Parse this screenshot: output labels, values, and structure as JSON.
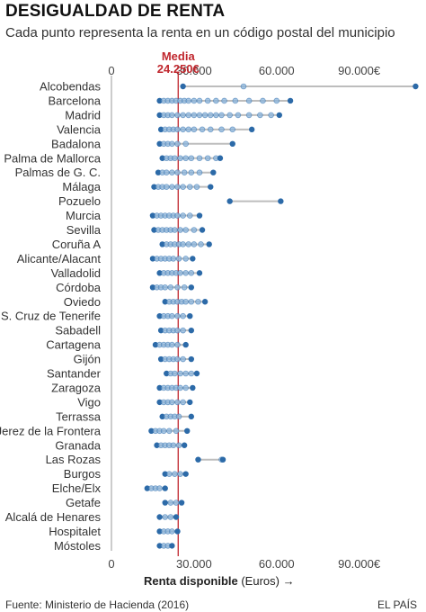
{
  "header": {
    "title": "DESIGUALDAD DE RENTA",
    "subtitle": "Cada punto representa la renta en un código postal del municipio"
  },
  "footer": {
    "source": "Fuente: Ministerio de Hacienda (2016)",
    "brand": "EL PAÍS"
  },
  "colors": {
    "dot": "#2c6aa8",
    "dot_light": "#8ab4dc",
    "range_line": "#bdbdbd",
    "median_line": "#c0262d",
    "axis": "#999999"
  },
  "chart_data": {
    "type": "scatter",
    "title": "DESIGUALDAD DE RENTA",
    "subtitle": "Cada punto representa la renta en un código postal del municipio",
    "xlabel": "Renta disponible",
    "xlabel_unit": "(Euros) →",
    "xlim": [
      0,
      112000
    ],
    "xticks": [
      0,
      30000,
      60000,
      90000
    ],
    "xtick_labels": [
      "0",
      "30.000",
      "60.000",
      "90.000€"
    ],
    "grid": false,
    "reference_line": {
      "label": "Media",
      "value_label": "24.250€",
      "value": 24250
    },
    "categories": [
      "Alcobendas",
      "Barcelona",
      "Madrid",
      "Valencia",
      "Badalona",
      "Palma de Mallorca",
      "Palmas de G. C.",
      "Málaga",
      "Pozuelo",
      "Murcia",
      "Sevilla",
      "Coruña A",
      "Alicante/Alacant",
      "Valladolid",
      "Córdoba",
      "Oviedo",
      "S. Cruz de Tenerife",
      "Sabadell",
      "Cartagena",
      "Gijón",
      "Santander",
      "Zaragoza",
      "Vigo",
      "Terrassa",
      "Jerez de la Frontera",
      "Granada",
      "Las Rozas",
      "Burgos",
      "Elche/Elx",
      "Getafe",
      "Alcalá de Henares",
      "Hospitalet",
      "Móstoles"
    ],
    "series": [
      {
        "category": "Alcobendas",
        "values": [
          26000,
          48000,
          110500
        ]
      },
      {
        "category": "Barcelona",
        "values": [
          17500,
          19000,
          20500,
          22000,
          23500,
          25000,
          26500,
          28000,
          30000,
          32000,
          35000,
          38000,
          41000,
          45000,
          50000,
          55000,
          60000,
          65000
        ]
      },
      {
        "category": "Madrid",
        "values": [
          17500,
          19000,
          20500,
          22000,
          24000,
          26000,
          28000,
          30000,
          32000,
          34000,
          36000,
          38000,
          40000,
          43000,
          46000,
          50000,
          54000,
          58000,
          61000
        ]
      },
      {
        "category": "Valencia",
        "values": [
          18000,
          19500,
          21000,
          22500,
          24000,
          26000,
          28000,
          30000,
          33000,
          36000,
          40000,
          44000,
          51000
        ]
      },
      {
        "category": "Badalona",
        "values": [
          17500,
          19000,
          20500,
          22000,
          24000,
          27000,
          44000
        ]
      },
      {
        "category": "Palma de Mallorca",
        "values": [
          18500,
          20000,
          21500,
          23000,
          25000,
          27000,
          29000,
          32000,
          35000,
          38000,
          39500
        ]
      },
      {
        "category": "Palmas de G. C.",
        "values": [
          17000,
          18500,
          20000,
          22000,
          24000,
          26500,
          29000,
          32000,
          37000
        ]
      },
      {
        "category": "Málaga",
        "values": [
          15500,
          17000,
          18500,
          20000,
          22000,
          24000,
          26000,
          28500,
          31000,
          36000
        ]
      },
      {
        "category": "Pozuelo",
        "values": [
          43000,
          61500
        ]
      },
      {
        "category": "Murcia",
        "values": [
          15000,
          16500,
          18000,
          19500,
          21000,
          22500,
          24000,
          26000,
          28500,
          32000
        ]
      },
      {
        "category": "Sevilla",
        "values": [
          15500,
          17000,
          18500,
          20000,
          21500,
          23000,
          25000,
          27000,
          30000,
          33000
        ]
      },
      {
        "category": "Coruña A",
        "values": [
          18500,
          20000,
          21500,
          23000,
          24500,
          26000,
          28000,
          30000,
          32500,
          35500
        ]
      },
      {
        "category": "Alicante/Alacant",
        "values": [
          15000,
          16500,
          18000,
          19500,
          21000,
          22500,
          24500,
          27000,
          29500
        ]
      },
      {
        "category": "Valladolid",
        "values": [
          17500,
          19000,
          20500,
          22000,
          23500,
          25000,
          27000,
          29000,
          32000
        ]
      },
      {
        "category": "Córdoba",
        "values": [
          15000,
          16500,
          18000,
          19500,
          21500,
          24000,
          26500,
          29000
        ]
      },
      {
        "category": "Oviedo",
        "values": [
          19500,
          21000,
          22500,
          24000,
          25500,
          27000,
          29000,
          31500,
          34000
        ]
      },
      {
        "category": "S. Cruz de Tenerife",
        "values": [
          17500,
          19000,
          20500,
          22000,
          24000,
          26000,
          28500
        ]
      },
      {
        "category": "Sabadell",
        "values": [
          18000,
          19500,
          21000,
          22500,
          24000,
          26000,
          29000
        ]
      },
      {
        "category": "Cartagena",
        "values": [
          16000,
          17500,
          19000,
          20500,
          22000,
          24000,
          27000
        ]
      },
      {
        "category": "Gijón",
        "values": [
          18000,
          19500,
          21000,
          22500,
          24000,
          26000,
          29000
        ]
      },
      {
        "category": "Santander",
        "values": [
          20000,
          21500,
          23000,
          25000,
          27000,
          29000,
          31000
        ]
      },
      {
        "category": "Zaragoza",
        "values": [
          17500,
          19000,
          20500,
          22000,
          23500,
          25000,
          27000,
          29500
        ]
      },
      {
        "category": "Vigo",
        "values": [
          17500,
          19000,
          20500,
          22000,
          24000,
          26000,
          28500
        ]
      },
      {
        "category": "Terrassa",
        "values": [
          18500,
          20000,
          21500,
          23000,
          24500,
          29000
        ]
      },
      {
        "category": "Jerez de la Frontera",
        "values": [
          14500,
          16000,
          17500,
          19000,
          21000,
          23500,
          27500
        ]
      },
      {
        "category": "Granada",
        "values": [
          16500,
          18000,
          19500,
          21000,
          22500,
          24500,
          26500
        ]
      },
      {
        "category": "Las Rozas",
        "values": [
          31500,
          40000,
          40500
        ]
      },
      {
        "category": "Burgos",
        "values": [
          19500,
          21000,
          23000,
          25000,
          27000
        ]
      },
      {
        "category": "Elche/Elx",
        "values": [
          13000,
          14500,
          16000,
          17500,
          19500
        ]
      },
      {
        "category": "Getafe",
        "values": [
          19500,
          21500,
          23500,
          25500
        ]
      },
      {
        "category": "Alcalá de Henares",
        "values": [
          17500,
          19500,
          21500,
          23500
        ]
      },
      {
        "category": "Hospitalet",
        "values": [
          17500,
          19000,
          20500,
          22000,
          24000
        ]
      },
      {
        "category": "Móstoles",
        "values": [
          17500,
          19000,
          20500,
          22000
        ]
      }
    ]
  }
}
